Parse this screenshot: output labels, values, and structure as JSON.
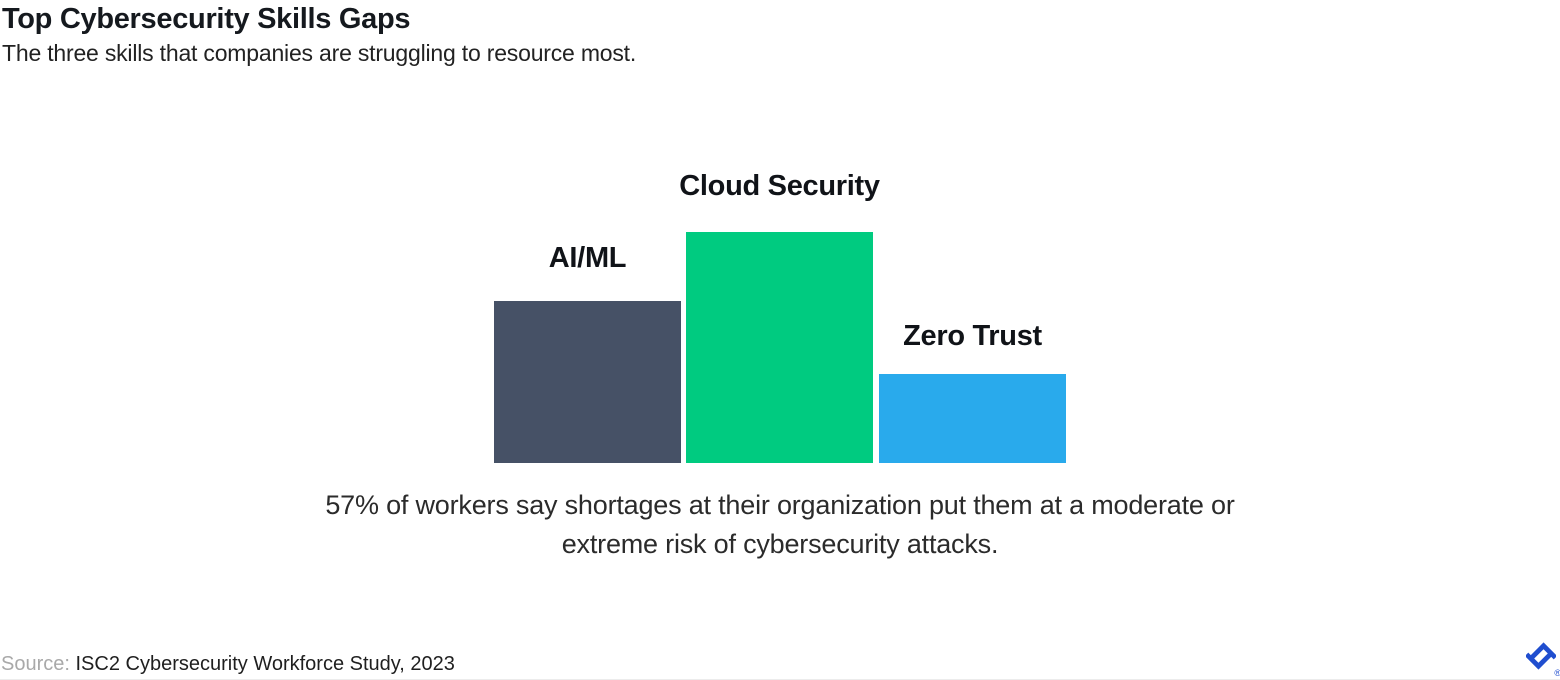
{
  "header": {
    "title": "Top Cybersecurity Skills Gaps",
    "subtitle": "The three skills that companies are struggling to resource most."
  },
  "chart_data": {
    "type": "bar",
    "title": "Top Cybersecurity Skills Gaps",
    "subtitle": "The three skills that companies are struggling to resource most.",
    "categories": [
      "AI/ML",
      "Cloud Security",
      "Zero Trust"
    ],
    "values_relative_to_tallest": [
      0.7,
      1.0,
      0.385
    ],
    "colors": [
      "#465166",
      "#00CB80",
      "#29AAEC"
    ],
    "xlabel": "",
    "ylabel": "",
    "axes_shown": false,
    "grid": false,
    "legend": "none",
    "value_labels_shown": false,
    "annotation": "57% of workers say shortages at their organization put them at a moderate or extreme risk of cybersecurity attacks."
  },
  "chart": {
    "caption_line1": "57% of workers say shortages at their organization put them at a moderate or",
    "caption_line2": "extreme risk of cybersecurity attacks."
  },
  "footer": {
    "source_label": "Source: ",
    "source_text": "ISC2 Cybersecurity Workforce Study, 2023",
    "logo_name": "Toptal",
    "registered_mark": "®",
    "logo_color": "#204ECF"
  }
}
